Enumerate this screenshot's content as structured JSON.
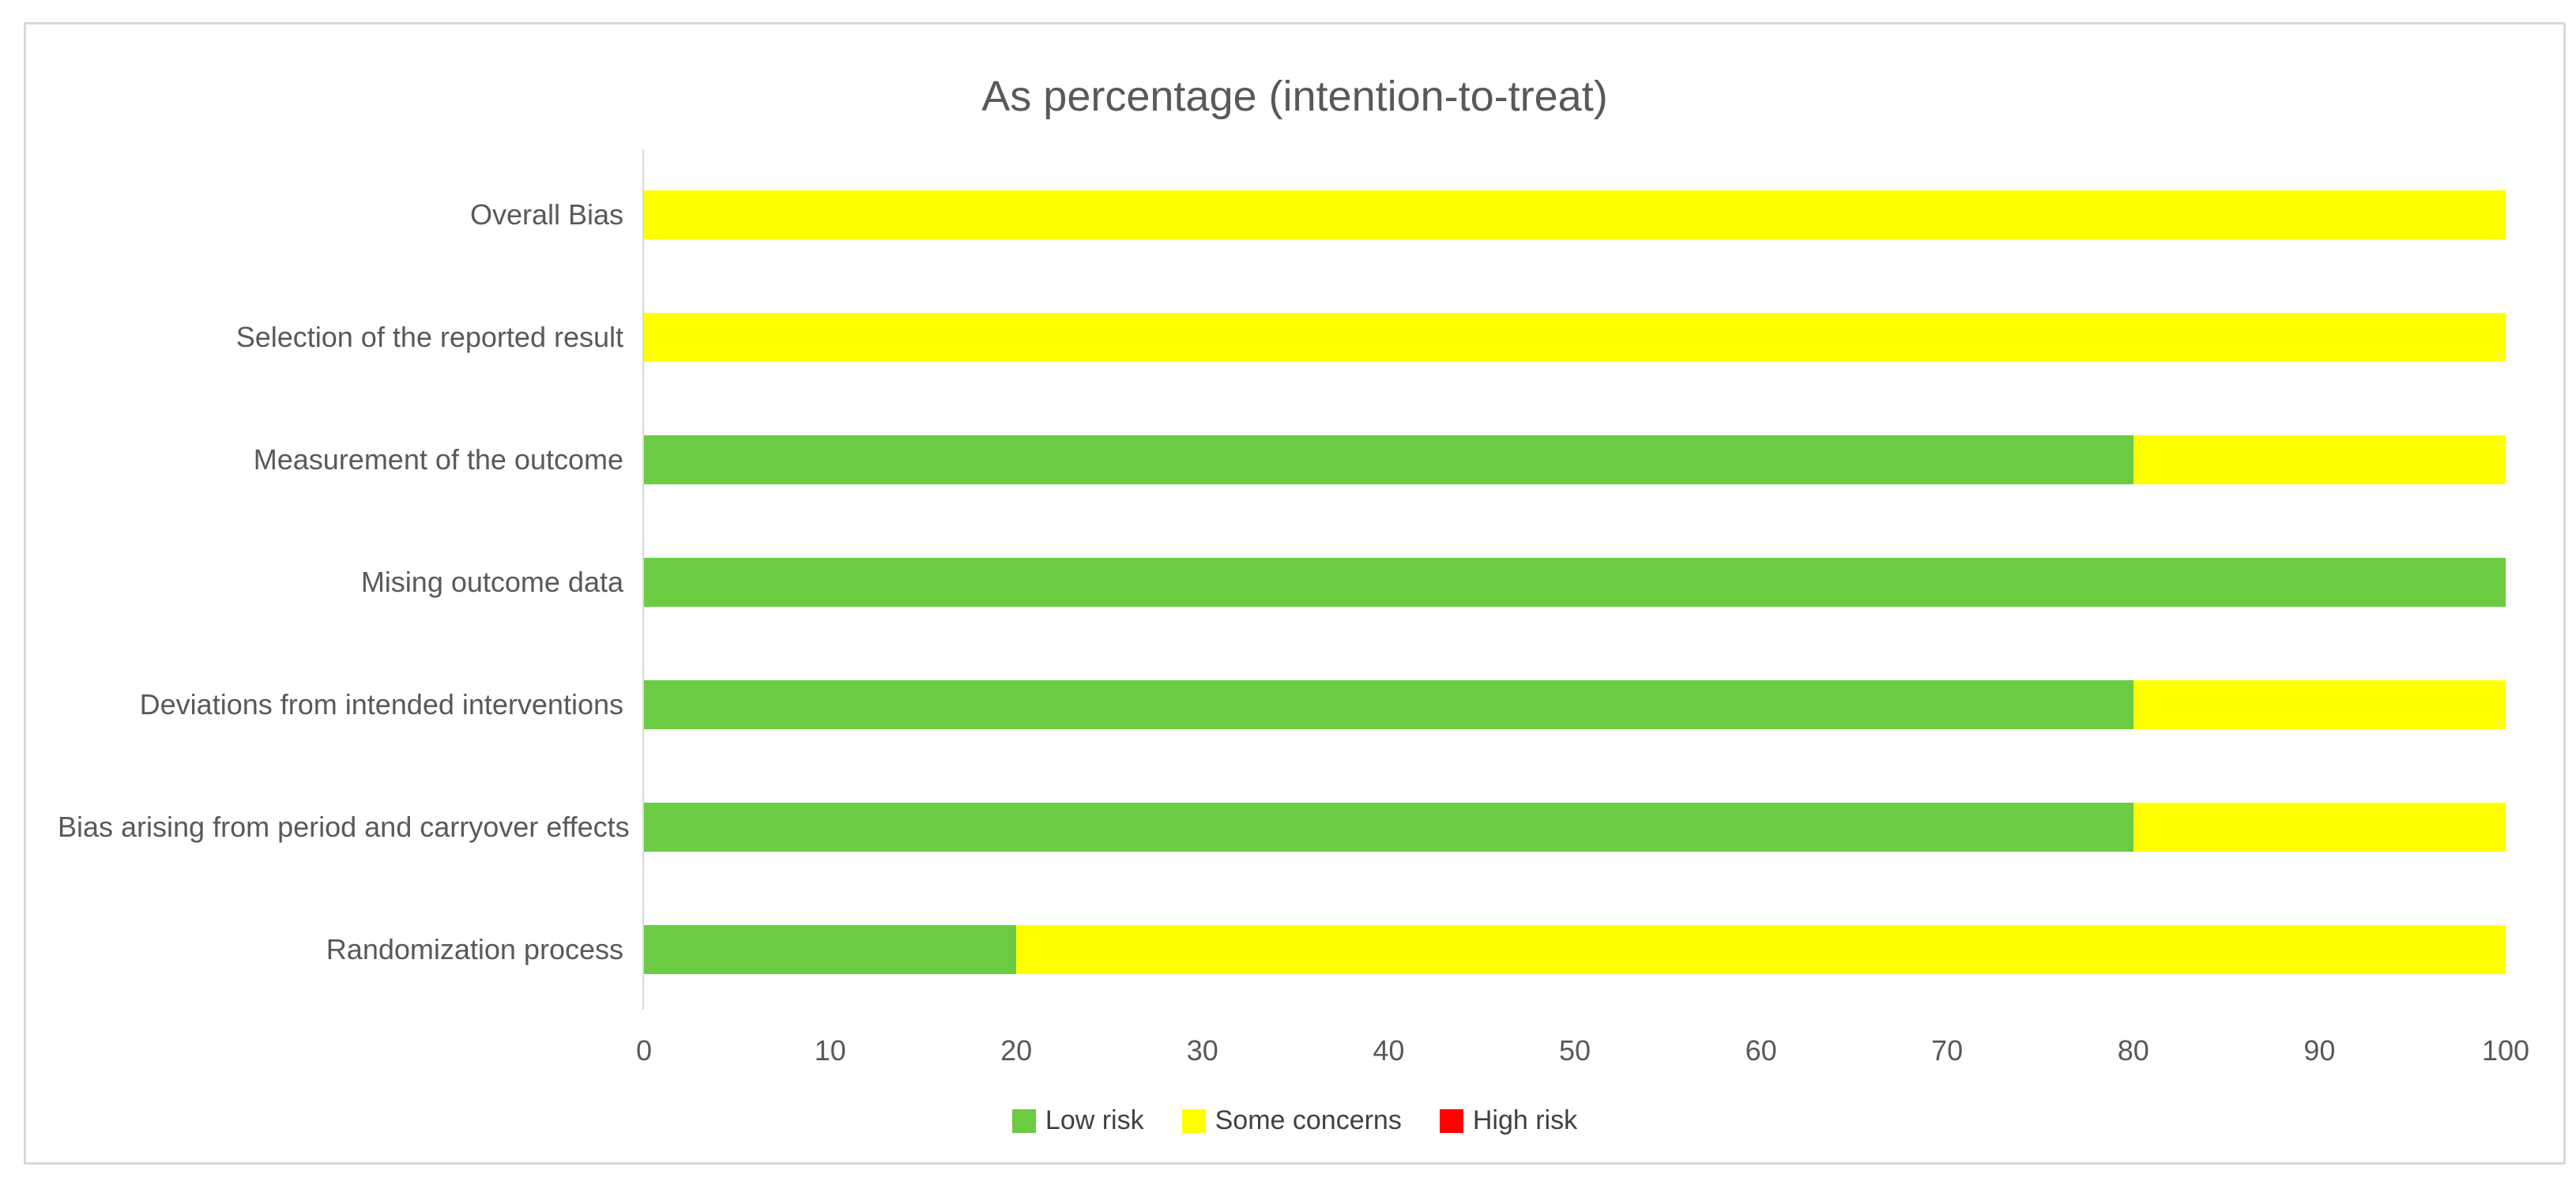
{
  "title": "As percentage (intention-to-treat)",
  "colors": {
    "low_risk": "#6BCB43",
    "some_concerns": "#FFFF00",
    "high_risk": "#FF0000",
    "axis_line": "#D9D9D9",
    "frame_border": "#D9D9D9",
    "title_text": "#595959",
    "label_text": "#595959",
    "legend_text": "#404040"
  },
  "chart_data": {
    "type": "bar",
    "orientation": "horizontal",
    "stacked": true,
    "title": "As percentage (intention-to-treat)",
    "categories": [
      "Overall Bias",
      "Selection of the reported result",
      "Measurement of the outcome",
      "Mising outcome data",
      "Deviations from intended interventions",
      "Bias arising from period and carryover effects",
      "Randomization process"
    ],
    "series": [
      {
        "name": "Low risk",
        "color": "#6BCB43",
        "values": [
          0,
          0,
          80,
          100,
          80,
          80,
          20
        ]
      },
      {
        "name": "Some concerns",
        "color": "#FFFF00",
        "values": [
          100,
          100,
          20,
          0,
          20,
          20,
          80
        ]
      },
      {
        "name": "High risk",
        "color": "#FF0000",
        "values": [
          0,
          0,
          0,
          0,
          0,
          0,
          0
        ]
      }
    ],
    "xlim": [
      0,
      100
    ],
    "x_ticks": [
      0,
      10,
      20,
      30,
      40,
      50,
      60,
      70,
      80,
      90,
      100
    ],
    "grid": false,
    "legend_position": "bottom"
  }
}
